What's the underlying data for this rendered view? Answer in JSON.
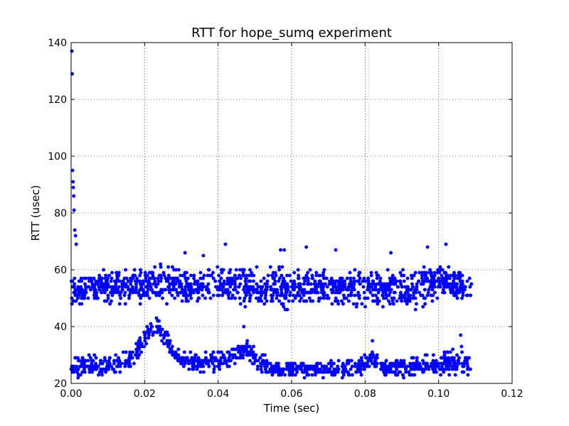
{
  "chart_data": {
    "type": "scatter",
    "title": "RTT for hope_sumq experiment",
    "xlabel": "Time (sec)",
    "ylabel": "RTT (usec)",
    "xlim": [
      0.0,
      0.12
    ],
    "ylim": [
      20,
      140
    ],
    "x_ticks": [
      0.0,
      0.02,
      0.04,
      0.06,
      0.08,
      0.1,
      0.12
    ],
    "x_tick_labels": [
      "0.00",
      "0.02",
      "0.04",
      "0.06",
      "0.08",
      "0.10",
      "0.12"
    ],
    "y_ticks": [
      20,
      40,
      60,
      80,
      100,
      120,
      140
    ],
    "y_tick_labels": [
      "20",
      "40",
      "60",
      "80",
      "100",
      "120",
      "140"
    ],
    "grid": true,
    "grid_style": "dotted",
    "marker_color": "#0000ff",
    "series": [
      {
        "x_range": [
          0.0,
          0.109
        ],
        "outliers": [
          {
            "x": 0.0002,
            "y": 137
          },
          {
            "x": 0.0003,
            "y": 129
          },
          {
            "x": 0.0004,
            "y": 95
          },
          {
            "x": 0.0005,
            "y": 91
          },
          {
            "x": 0.0006,
            "y": 89
          },
          {
            "x": 0.0007,
            "y": 86
          },
          {
            "x": 0.0008,
            "y": 81
          },
          {
            "x": 0.001,
            "y": 74
          },
          {
            "x": 0.0012,
            "y": 72
          },
          {
            "x": 0.0014,
            "y": 69
          }
        ],
        "upper_band": [
          {
            "x": 0.0,
            "y_min": 45,
            "y_max": 60
          },
          {
            "x": 0.01,
            "y_min": 46,
            "y_max": 62
          },
          {
            "x": 0.02,
            "y_min": 46,
            "y_max": 63
          },
          {
            "x": 0.025,
            "y_min": 46,
            "y_max": 64
          },
          {
            "x": 0.03,
            "y_min": 46,
            "y_max": 62
          },
          {
            "x": 0.04,
            "y_min": 46,
            "y_max": 63
          },
          {
            "x": 0.045,
            "y_min": 45,
            "y_max": 64
          },
          {
            "x": 0.05,
            "y_min": 45,
            "y_max": 62
          },
          {
            "x": 0.055,
            "y_min": 45,
            "y_max": 63
          },
          {
            "x": 0.06,
            "y_min": 45,
            "y_max": 62
          },
          {
            "x": 0.07,
            "y_min": 45,
            "y_max": 62
          },
          {
            "x": 0.08,
            "y_min": 45,
            "y_max": 62
          },
          {
            "x": 0.09,
            "y_min": 45,
            "y_max": 62
          },
          {
            "x": 0.095,
            "y_min": 44,
            "y_max": 64
          },
          {
            "x": 0.1,
            "y_min": 48,
            "y_max": 66
          },
          {
            "x": 0.105,
            "y_min": 46,
            "y_max": 62
          },
          {
            "x": 0.109,
            "y_min": 46,
            "y_max": 61
          }
        ],
        "lower_band": [
          {
            "x": 0.0,
            "y_min": 22,
            "y_max": 30
          },
          {
            "x": 0.01,
            "y_min": 22,
            "y_max": 30
          },
          {
            "x": 0.015,
            "y_min": 24,
            "y_max": 32
          },
          {
            "x": 0.018,
            "y_min": 28,
            "y_max": 35
          },
          {
            "x": 0.02,
            "y_min": 32,
            "y_max": 40
          },
          {
            "x": 0.022,
            "y_min": 36,
            "y_max": 44
          },
          {
            "x": 0.024,
            "y_min": 36,
            "y_max": 43
          },
          {
            "x": 0.026,
            "y_min": 32,
            "y_max": 40
          },
          {
            "x": 0.028,
            "y_min": 28,
            "y_max": 34
          },
          {
            "x": 0.03,
            "y_min": 24,
            "y_max": 32
          },
          {
            "x": 0.035,
            "y_min": 24,
            "y_max": 30
          },
          {
            "x": 0.04,
            "y_min": 24,
            "y_max": 33
          },
          {
            "x": 0.045,
            "y_min": 26,
            "y_max": 34
          },
          {
            "x": 0.048,
            "y_min": 28,
            "y_max": 38
          },
          {
            "x": 0.05,
            "y_min": 24,
            "y_max": 33
          },
          {
            "x": 0.055,
            "y_min": 22,
            "y_max": 28
          },
          {
            "x": 0.06,
            "y_min": 22,
            "y_max": 28
          },
          {
            "x": 0.07,
            "y_min": 22,
            "y_max": 28
          },
          {
            "x": 0.078,
            "y_min": 22,
            "y_max": 29
          },
          {
            "x": 0.082,
            "y_min": 26,
            "y_max": 32
          },
          {
            "x": 0.085,
            "y_min": 22,
            "y_max": 29
          },
          {
            "x": 0.09,
            "y_min": 22,
            "y_max": 29
          },
          {
            "x": 0.095,
            "y_min": 22,
            "y_max": 30
          },
          {
            "x": 0.1,
            "y_min": 22,
            "y_max": 31
          },
          {
            "x": 0.105,
            "y_min": 22,
            "y_max": 34
          },
          {
            "x": 0.109,
            "y_min": 22,
            "y_max": 31
          }
        ],
        "isolated_points": [
          {
            "x": 0.031,
            "y": 66
          },
          {
            "x": 0.036,
            "y": 65
          },
          {
            "x": 0.042,
            "y": 69
          },
          {
            "x": 0.057,
            "y": 67
          },
          {
            "x": 0.058,
            "y": 67
          },
          {
            "x": 0.064,
            "y": 68
          },
          {
            "x": 0.072,
            "y": 67
          },
          {
            "x": 0.087,
            "y": 66
          },
          {
            "x": 0.097,
            "y": 68
          },
          {
            "x": 0.102,
            "y": 69
          },
          {
            "x": 0.047,
            "y": 40
          },
          {
            "x": 0.106,
            "y": 37
          },
          {
            "x": 0.082,
            "y": 35
          }
        ]
      }
    ]
  }
}
